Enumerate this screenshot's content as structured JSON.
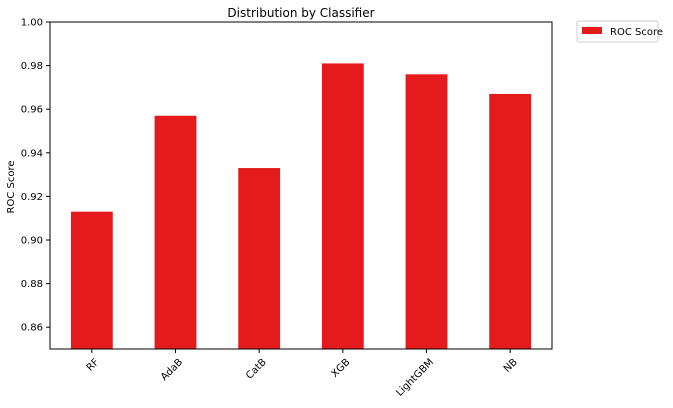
{
  "chart_data": {
    "type": "bar",
    "title": "Distribution by Classifier",
    "xlabel": "",
    "ylabel": "ROC Score",
    "categories": [
      "RF",
      "AdaB",
      "CatB",
      "XGB",
      "LightGBM",
      "NB"
    ],
    "series": [
      {
        "name": "ROC Score",
        "values": [
          0.913,
          0.957,
          0.933,
          0.981,
          0.976,
          0.967
        ],
        "color": "#e41a1c"
      }
    ],
    "ylim": [
      0.85,
      1.0
    ],
    "yticks": [
      "0.86",
      "0.88",
      "0.90",
      "0.92",
      "0.94",
      "0.96",
      "0.98",
      "1.00"
    ],
    "grid": false,
    "legend_position": "outside-top-right"
  }
}
